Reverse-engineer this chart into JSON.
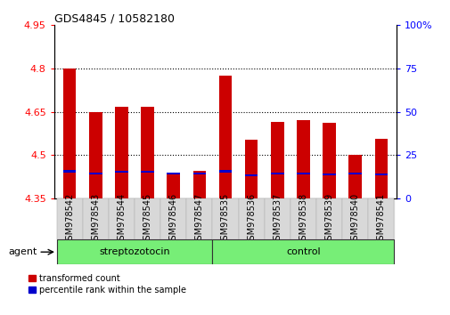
{
  "title": "GDS4845 / 10582180",
  "samples": [
    "GSM978542",
    "GSM978543",
    "GSM978544",
    "GSM978545",
    "GSM978546",
    "GSM978547",
    "GSM978535",
    "GSM978536",
    "GSM978537",
    "GSM978538",
    "GSM978539",
    "GSM978540",
    "GSM978541"
  ],
  "red_values": [
    4.8,
    4.648,
    4.668,
    4.668,
    4.435,
    4.447,
    4.775,
    4.553,
    4.615,
    4.62,
    4.612,
    4.502,
    4.557
  ],
  "blue_top": [
    4.448,
    4.438,
    4.445,
    4.445,
    4.438,
    4.438,
    4.448,
    4.433,
    4.438,
    4.438,
    4.435,
    4.438,
    4.435
  ],
  "blue_height": [
    0.008,
    0.006,
    0.007,
    0.007,
    0.005,
    0.006,
    0.008,
    0.005,
    0.006,
    0.006,
    0.005,
    0.006,
    0.005
  ],
  "ylim_left": [
    4.35,
    4.95
  ],
  "ylim_right": [
    0,
    100
  ],
  "yticks_left": [
    4.35,
    4.5,
    4.65,
    4.8,
    4.95
  ],
  "yticks_right": [
    0,
    25,
    50,
    75,
    100
  ],
  "ytick_labels_left": [
    "4.35",
    "4.5",
    "4.65",
    "4.8",
    "4.95"
  ],
  "ytick_labels_right": [
    "0",
    "25",
    "50",
    "75",
    "100%"
  ],
  "group1_label": "streptozotocin",
  "group2_label": "control",
  "group1_indices": [
    0,
    1,
    2,
    3,
    4,
    5
  ],
  "group2_indices": [
    6,
    7,
    8,
    9,
    10,
    11,
    12
  ],
  "agent_label": "agent",
  "legend1": "transformed count",
  "legend2": "percentile rank within the sample",
  "bar_color_red": "#cc0000",
  "bar_color_blue": "#0000cc",
  "group_bg_color": "#77ee77",
  "bar_width": 0.5,
  "base_value": 4.35
}
